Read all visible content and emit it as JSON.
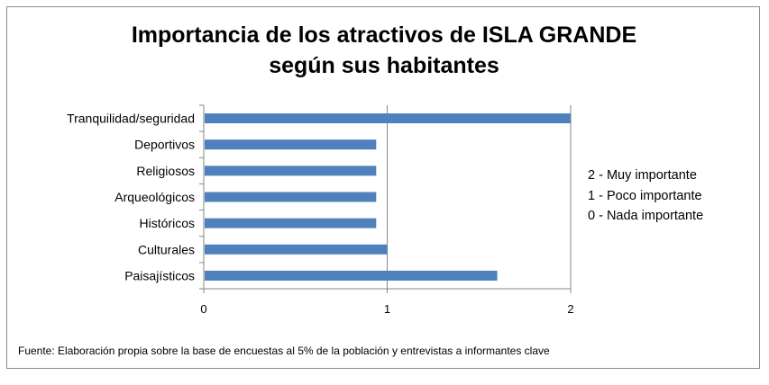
{
  "chart_data": {
    "type": "bar",
    "orientation": "horizontal",
    "title": [
      "Importancia de los atractivos de ISLA GRANDE",
      "según sus habitantes"
    ],
    "categories": [
      "Tranquilidad/seguridad",
      "Deportivos",
      "Religiosos",
      "Arqueológicos",
      "Históricos",
      "Culturales",
      "Paisajísticos"
    ],
    "values": [
      2.0,
      0.94,
      0.94,
      0.94,
      0.94,
      1.0,
      1.6
    ],
    "xlim": [
      0,
      2
    ],
    "xticks": [
      "0",
      "1",
      "2"
    ],
    "grid": "vertical",
    "bar_color": "#4f81bd",
    "legend_position": "right",
    "legend": [
      "2 - Muy importante",
      "1 - Poco importante",
      "0 - Nada importante"
    ]
  },
  "source_note": "Fuente: Elaboración propia sobre la base de encuestas al 5%  de la población y entrevistas a informantes clave"
}
